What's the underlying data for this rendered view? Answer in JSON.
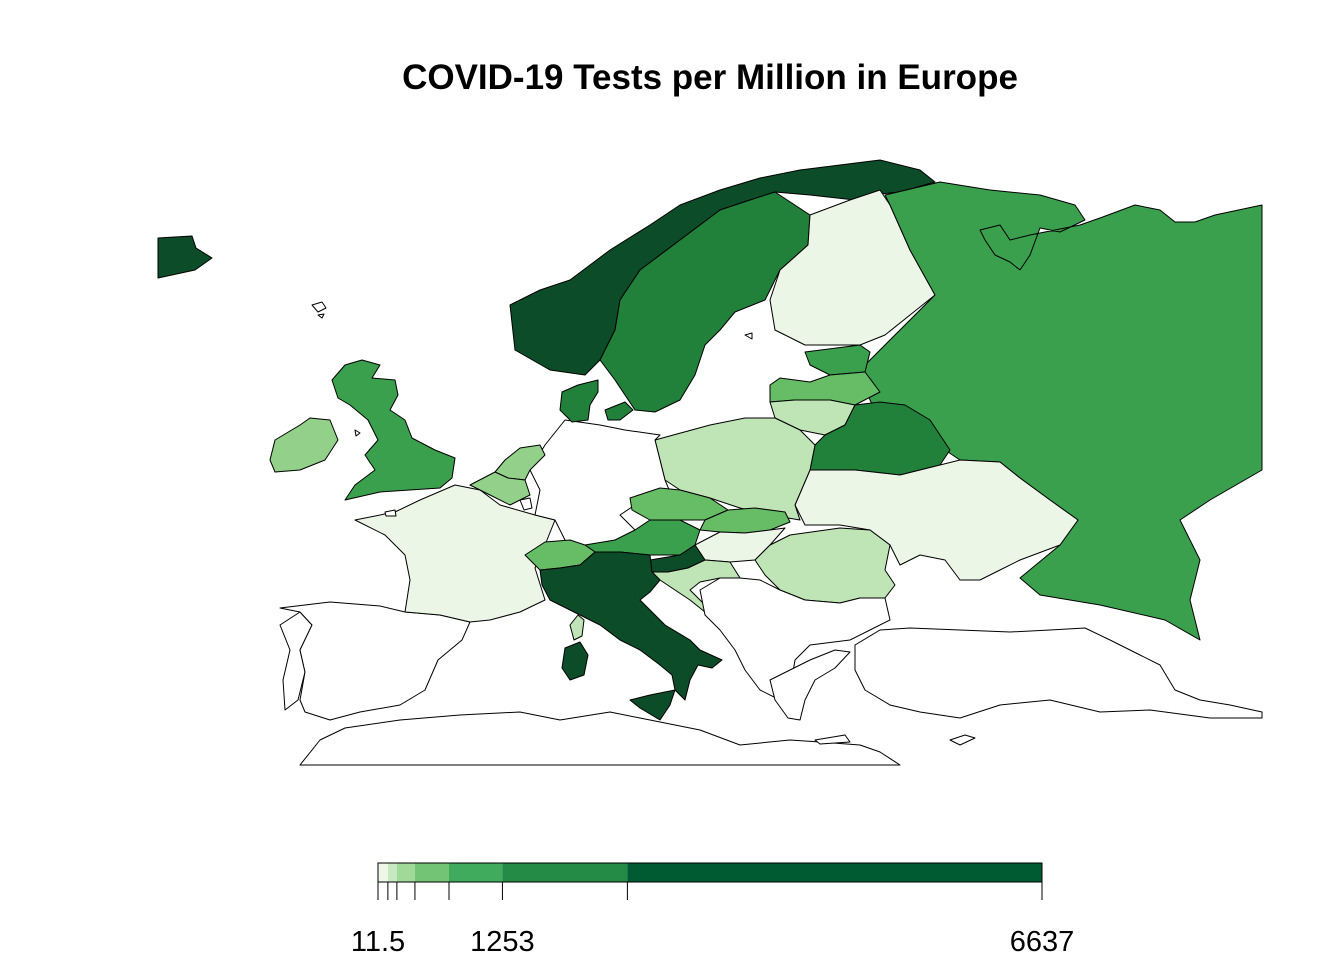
{
  "title": "COVID-19 Tests per Million in Europe",
  "legend": {
    "breaks": [
      11.5,
      110,
      200,
      380,
      720,
      1253,
      2500,
      6637
    ],
    "tick_labels": [
      "11.5",
      "1253",
      "6637"
    ],
    "colors": [
      "#edf8e9",
      "#c7e9c0",
      "#a1d99b",
      "#74c476",
      "#41ab5d",
      "#238b45",
      "#005a32"
    ]
  },
  "palette": {
    "c1": "#ebf6e6",
    "c2": "#bfe5b6",
    "c3": "#93d18a",
    "c4": "#67bd65",
    "c5": "#3aa04d",
    "c6": "#21803a",
    "c7": "#0c4c29",
    "none": "#ffffff"
  },
  "regions": [
    {
      "name": "Iceland",
      "class": "c7"
    },
    {
      "name": "Norway",
      "class": "c7"
    },
    {
      "name": "Sweden",
      "class": "c6"
    },
    {
      "name": "Finland",
      "class": "c1"
    },
    {
      "name": "Russia",
      "class": "c5"
    },
    {
      "name": "Estonia",
      "class": "c5"
    },
    {
      "name": "Latvia",
      "class": "c4"
    },
    {
      "name": "Lithuania",
      "class": "c2"
    },
    {
      "name": "Belarus",
      "class": "c6"
    },
    {
      "name": "Ukraine",
      "class": "c1"
    },
    {
      "name": "Poland",
      "class": "c2"
    },
    {
      "name": "Germany",
      "class": "none"
    },
    {
      "name": "Denmark",
      "class": "c6"
    },
    {
      "name": "Netherlands",
      "class": "c3"
    },
    {
      "name": "Belgium",
      "class": "c3"
    },
    {
      "name": "Luxembourg",
      "class": "none"
    },
    {
      "name": "United Kingdom",
      "class": "c5"
    },
    {
      "name": "Ireland",
      "class": "c3"
    },
    {
      "name": "France",
      "class": "c1"
    },
    {
      "name": "Spain",
      "class": "none"
    },
    {
      "name": "Portugal",
      "class": "none"
    },
    {
      "name": "Switzerland",
      "class": "c4"
    },
    {
      "name": "Austria",
      "class": "c5"
    },
    {
      "name": "Czechia",
      "class": "c4"
    },
    {
      "name": "Slovakia",
      "class": "c4"
    },
    {
      "name": "Hungary",
      "class": "c1"
    },
    {
      "name": "Slovenia",
      "class": "c7"
    },
    {
      "name": "Croatia",
      "class": "c2"
    },
    {
      "name": "Romania",
      "class": "c2"
    },
    {
      "name": "Italy",
      "class": "c7"
    },
    {
      "name": "Sardinia",
      "class": "c7"
    },
    {
      "name": "Sicily",
      "class": "c7"
    },
    {
      "name": "Corsica",
      "class": "c2"
    },
    {
      "name": "Balkans",
      "class": "none"
    },
    {
      "name": "Greece",
      "class": "none"
    },
    {
      "name": "Turkey",
      "class": "none"
    },
    {
      "name": "North Africa",
      "class": "none"
    }
  ]
}
